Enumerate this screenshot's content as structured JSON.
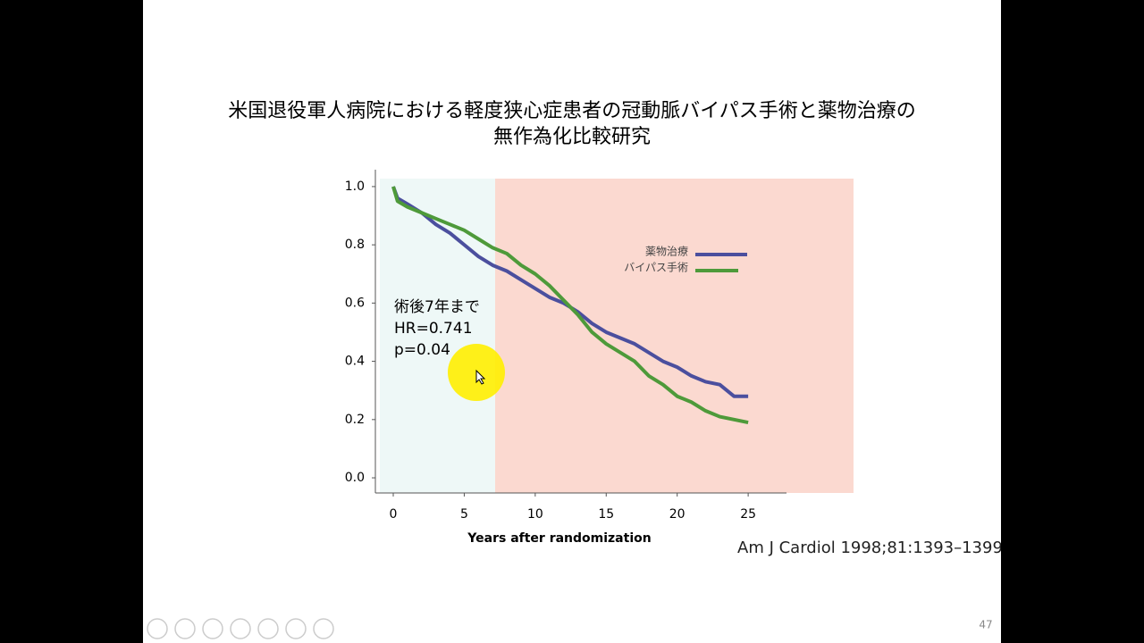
{
  "chart_data": {
    "type": "line",
    "title": [
      "米国退役軍人病院における軽度狭心症患者の冠動脈バイパス手術と薬物治療の",
      "無作為化比較研究"
    ],
    "x_label": "Years after randomization",
    "annotation": [
      "術後7年まで",
      "HR=0.741",
      "p=0.04"
    ],
    "x": [
      0,
      0.3,
      1,
      2,
      3,
      4,
      5,
      6,
      7,
      8,
      9,
      10,
      11,
      12,
      13,
      14,
      15,
      16,
      17,
      18,
      19,
      20,
      21,
      22,
      23,
      24,
      25
    ],
    "series": [
      {
        "name": "薬物治療",
        "color": "#4b4f9e",
        "values": [
          1.0,
          0.96,
          0.94,
          0.91,
          0.87,
          0.84,
          0.8,
          0.76,
          0.73,
          0.71,
          0.68,
          0.65,
          0.62,
          0.6,
          0.57,
          0.53,
          0.5,
          0.48,
          0.46,
          0.43,
          0.4,
          0.38,
          0.35,
          0.33,
          0.32,
          0.28,
          0.28
        ]
      },
      {
        "name": "バイパス手術",
        "color": "#4e9a3a",
        "values": [
          1.0,
          0.95,
          0.93,
          0.91,
          0.89,
          0.87,
          0.85,
          0.82,
          0.79,
          0.77,
          0.73,
          0.7,
          0.66,
          0.61,
          0.56,
          0.5,
          0.46,
          0.43,
          0.4,
          0.35,
          0.32,
          0.28,
          0.26,
          0.23,
          0.21,
          0.2,
          0.19
        ]
      }
    ],
    "xlim": [
      -1.26,
      27.7
    ],
    "ylim": [
      -0.052,
      1.058
    ],
    "xticks": [
      0,
      5,
      10,
      15,
      20,
      25
    ],
    "yticks": [
      {
        "value": 0,
        "label": "0.0"
      },
      0.2,
      0.4,
      0.6,
      0.8,
      {
        "value": 1,
        "label": "1.0"
      }
    ]
  },
  "citation": "Am J Cardiol 1998;81:1393–1399",
  "page_number": "47"
}
